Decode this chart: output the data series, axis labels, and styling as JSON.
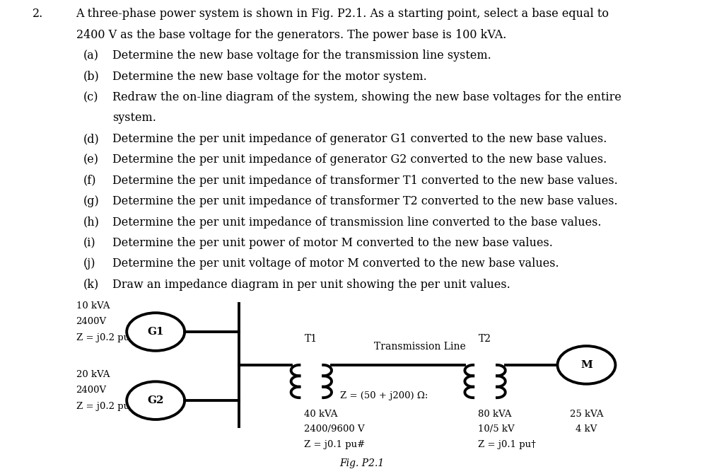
{
  "background_color": "#ffffff",
  "text_color": "#000000",
  "problem_number": "2.",
  "line1": "A three-phase power system is shown in Fig. P2.1. As a starting point, select a base equal to",
  "line2": "2400 V as the base voltage for the generators. The power base is 100 kVA.",
  "sub_items": [
    [
      "(a)",
      "Determine the new base voltage for the transmission line system."
    ],
    [
      "(b)",
      "Determine the new base voltage for the motor system."
    ],
    [
      "(c)",
      "Redraw the on-line diagram of the system, showing the new base voltages for the entire"
    ],
    [
      "",
      "system."
    ],
    [
      "(d)",
      "Determine the per unit impedance of generator G1 converted to the new base values."
    ],
    [
      "(e)",
      "Determine the per unit impedance of generator G2 converted to the new base values."
    ],
    [
      "(f)",
      "Determine the per unit impedance of transformer T1 converted to the new base values."
    ],
    [
      "(g)",
      "Determine the per unit impedance of transformer T2 converted to the new base values."
    ],
    [
      "(h)",
      "Determine the per unit impedance of transmission line converted to the base values."
    ],
    [
      "(i)",
      "Determine the per unit power of motor M converted to the new base values."
    ],
    [
      "(j)",
      "Determine the per unit voltage of motor M converted to the new base values."
    ],
    [
      "(k)",
      "Draw an impedance diagram in per unit showing the per unit values."
    ]
  ],
  "diagram": {
    "G1_label": "G1",
    "G1_top_text": [
      "10 kVA",
      "2400V",
      "Z = j0.2 pu"
    ],
    "G2_label": "G2",
    "G2_top_text": [
      "20 kVA",
      "2400V",
      "Z = j0.2 pu"
    ],
    "T1_label": "T1",
    "T1_bottom_text": [
      "40 kVA",
      "2400/9600 V",
      "Z = j0.1 pu#"
    ],
    "T2_label": "T2",
    "T2_bottom_text": [
      "80 kVA",
      "10/5 kV",
      "Z = j0.1 pu†"
    ],
    "transmission_label": "Transmission Line",
    "transmission_impedance": "Z = (50 + j200) Ω:",
    "M_label": "M",
    "M_bottom_text": [
      "25 kVA",
      "4 kV"
    ],
    "fig_caption": "Fig. P2.1"
  }
}
